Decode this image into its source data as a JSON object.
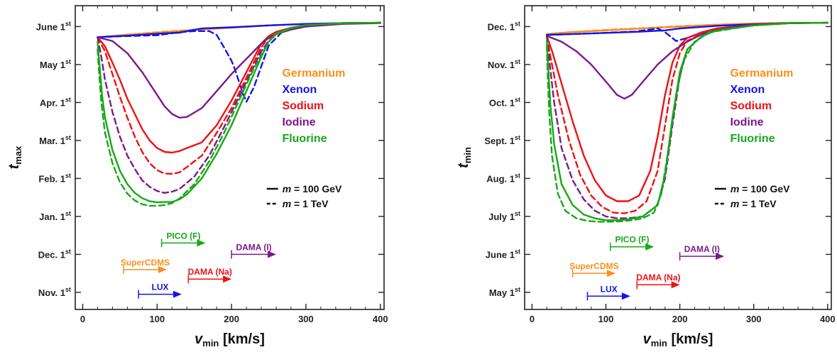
{
  "colors": {
    "Germanium": "#ff8c1a",
    "Xenon": "#1414e6",
    "Sodium": "#ee1111",
    "Iodine": "#7a1a8c",
    "Fluorine": "#17a817"
  },
  "legend_entries": [
    "Germanium",
    "Xenon",
    "Sodium",
    "Iodine",
    "Fluorine"
  ],
  "style_legend": [
    {
      "dash": "solid",
      "prefix": "m",
      "text": " = 100 GeV"
    },
    {
      "dash": "dashed",
      "prefix": "m",
      "text": " = 1 TeV"
    }
  ],
  "chart_data": [
    {
      "type": "line",
      "ylabel_main": "t",
      "ylabel_sub": "max",
      "xlabel_main": "v",
      "xlabel_sub": "min",
      "xlabel_unit": "[km/s]",
      "xlim": [
        -10,
        405
      ],
      "ylim": [
        -0.45,
        7.55
      ],
      "xticks": [
        0,
        100,
        200,
        300,
        400
      ],
      "yticks": [
        {
          "v": 0,
          "label": "Nov. 1",
          "sup": "st"
        },
        {
          "v": 1,
          "label": "Dec. 1",
          "sup": "st"
        },
        {
          "v": 2,
          "label": "Jan. 1",
          "sup": "st"
        },
        {
          "v": 3,
          "label": "Feb. 1",
          "sup": "st"
        },
        {
          "v": 4,
          "label": "Mar. 1",
          "sup": "st"
        },
        {
          "v": 5,
          "label": "Apr. 1",
          "sup": "st"
        },
        {
          "v": 6,
          "label": "May 1",
          "sup": "st"
        },
        {
          "v": 7,
          "label": "June 1",
          "sup": "st"
        }
      ],
      "series": [
        {
          "name": "Germanium",
          "style": "solid",
          "x": [
            20,
            50,
            100,
            150,
            200,
            250,
            300,
            350,
            400
          ],
          "y": [
            6.72,
            6.77,
            6.84,
            6.91,
            6.97,
            7.03,
            7.07,
            7.09,
            7.1
          ]
        },
        {
          "name": "Germanium",
          "style": "dashed",
          "x": [
            20,
            50,
            100,
            150,
            200,
            250,
            300,
            350,
            400
          ],
          "y": [
            6.72,
            6.77,
            6.85,
            6.92,
            6.98,
            7.03,
            7.07,
            7.09,
            7.1
          ]
        },
        {
          "name": "Xenon",
          "style": "solid",
          "x": [
            20,
            60,
            100,
            130,
            160,
            200,
            250,
            300,
            350,
            400
          ],
          "y": [
            6.72,
            6.76,
            6.81,
            6.84,
            6.95,
            6.98,
            7.03,
            7.07,
            7.09,
            7.1
          ]
        },
        {
          "name": "Xenon",
          "style": "dashed",
          "x": [
            20,
            60,
            100,
            130,
            150,
            170,
            180,
            190,
            200,
            205,
            210,
            215,
            220,
            230,
            240,
            250,
            270,
            300,
            350,
            400
          ],
          "y": [
            6.72,
            6.75,
            6.77,
            6.85,
            6.88,
            6.88,
            6.78,
            6.45,
            6.1,
            5.85,
            5.55,
            5.25,
            5.02,
            5.4,
            5.95,
            6.5,
            6.9,
            7.05,
            7.09,
            7.1
          ]
        },
        {
          "name": "Sodium",
          "style": "solid",
          "x": [
            20,
            30,
            40,
            50,
            60,
            70,
            80,
            90,
            100,
            110,
            120,
            130,
            140,
            160,
            180,
            200,
            220,
            240,
            250,
            260,
            280,
            300,
            350,
            400
          ],
          "y": [
            6.72,
            6.48,
            6.05,
            5.6,
            5.1,
            4.7,
            4.3,
            4.0,
            3.8,
            3.7,
            3.68,
            3.72,
            3.8,
            3.95,
            4.4,
            5.05,
            5.8,
            6.55,
            6.75,
            6.86,
            6.97,
            7.04,
            7.09,
            7.1
          ]
        },
        {
          "name": "Sodium",
          "style": "dashed",
          "x": [
            20,
            30,
            40,
            50,
            60,
            70,
            80,
            90,
            100,
            110,
            120,
            130,
            140,
            160,
            180,
            200,
            220,
            240,
            250,
            260,
            280,
            300,
            350,
            400
          ],
          "y": [
            6.72,
            6.35,
            5.75,
            5.15,
            4.6,
            4.1,
            3.7,
            3.4,
            3.22,
            3.13,
            3.12,
            3.16,
            3.3,
            3.6,
            4.2,
            4.85,
            5.65,
            6.45,
            6.72,
            6.84,
            6.96,
            7.04,
            7.09,
            7.1
          ]
        },
        {
          "name": "Iodine",
          "style": "solid",
          "x": [
            20,
            40,
            60,
            80,
            100,
            110,
            120,
            130,
            140,
            160,
            180,
            200,
            220,
            240,
            250,
            260,
            280,
            300,
            350,
            400
          ],
          "y": [
            6.72,
            6.62,
            6.3,
            5.8,
            5.2,
            4.9,
            4.7,
            4.6,
            4.62,
            4.85,
            5.3,
            5.75,
            6.15,
            6.55,
            6.7,
            6.8,
            6.92,
            7.0,
            7.07,
            7.09
          ]
        },
        {
          "name": "Iodine",
          "style": "dashed",
          "x": [
            20,
            25,
            30,
            40,
            50,
            60,
            70,
            80,
            90,
            100,
            110,
            120,
            130,
            150,
            170,
            190,
            210,
            230,
            240,
            250,
            260,
            280,
            300,
            350,
            400
          ],
          "y": [
            6.72,
            6.2,
            5.6,
            4.75,
            4.1,
            3.6,
            3.25,
            2.95,
            2.78,
            2.67,
            2.62,
            2.65,
            2.72,
            3.05,
            3.6,
            4.35,
            5.15,
            5.95,
            6.35,
            6.62,
            6.8,
            6.95,
            7.04,
            7.08,
            7.1
          ]
        },
        {
          "name": "Fluorine",
          "style": "solid",
          "x": [
            20,
            23,
            26,
            30,
            40,
            50,
            60,
            70,
            80,
            90,
            100,
            110,
            120,
            130,
            140,
            160,
            180,
            200,
            220,
            240,
            250,
            260,
            280,
            300,
            350,
            400
          ],
          "y": [
            6.6,
            5.9,
            5.2,
            4.6,
            3.75,
            3.2,
            2.85,
            2.62,
            2.48,
            2.4,
            2.37,
            2.38,
            2.38,
            2.45,
            2.58,
            3.0,
            3.65,
            4.4,
            5.3,
            6.2,
            6.6,
            6.8,
            6.96,
            7.04,
            7.09,
            7.1
          ]
        },
        {
          "name": "Fluorine",
          "style": "dashed",
          "x": [
            20,
            22,
            25,
            30,
            40,
            50,
            60,
            70,
            80,
            90,
            100,
            110,
            120,
            130,
            150,
            170,
            190,
            210,
            230,
            250,
            260,
            280,
            300,
            350,
            400
          ],
          "y": [
            6.4,
            5.8,
            5.0,
            4.2,
            3.4,
            2.9,
            2.6,
            2.42,
            2.32,
            2.28,
            2.28,
            2.3,
            2.35,
            2.47,
            2.85,
            3.45,
            4.2,
            5.05,
            5.9,
            6.6,
            6.82,
            6.97,
            7.04,
            7.09,
            7.1
          ]
        }
      ],
      "experiments": [
        {
          "label": "PICO (F)",
          "color_key": "Fluorine",
          "start": 106,
          "end": 165,
          "y": 1.3
        },
        {
          "label": "DAMA (I)",
          "color_key": "Iodine",
          "start": 200,
          "end": 260,
          "y": 1.0
        },
        {
          "label": "SuperCDMS",
          "color_key": "Germanium",
          "start": 55,
          "end": 113,
          "y": 0.6
        },
        {
          "label": "DAMA (Na)",
          "color_key": "Sodium",
          "start": 142,
          "end": 200,
          "y": 0.35
        },
        {
          "label": "LUX",
          "color_key": "Xenon",
          "start": 75,
          "end": 133,
          "y": -0.05
        }
      ]
    },
    {
      "type": "line",
      "ylabel_main": "t",
      "ylabel_sub": "min",
      "xlabel_main": "v",
      "xlabel_sub": "min",
      "xlabel_unit": "[km/s]",
      "xlim": [
        -10,
        405
      ],
      "ylim": [
        -0.45,
        7.55
      ],
      "xticks": [
        0,
        100,
        200,
        300,
        400
      ],
      "yticks": [
        {
          "v": 0,
          "label": "May 1",
          "sup": "st"
        },
        {
          "v": 1,
          "label": "June 1",
          "sup": "st"
        },
        {
          "v": 2,
          "label": "July 1",
          "sup": "st"
        },
        {
          "v": 3,
          "label": "Aug. 1",
          "sup": "st"
        },
        {
          "v": 4,
          "label": "Sept. 1",
          "sup": "st"
        },
        {
          "v": 5,
          "label": "Oct. 1",
          "sup": "st"
        },
        {
          "v": 6,
          "label": "Nov. 1",
          "sup": "st"
        },
        {
          "v": 7,
          "label": "Dec. 1",
          "sup": "st"
        }
      ],
      "series": [
        {
          "name": "Germanium",
          "style": "solid",
          "x": [
            20,
            50,
            100,
            150,
            200,
            250,
            300,
            350,
            400
          ],
          "y": [
            6.8,
            6.85,
            6.9,
            6.95,
            7.0,
            7.05,
            7.08,
            7.1,
            7.1
          ]
        },
        {
          "name": "Germanium",
          "style": "dashed",
          "x": [
            20,
            50,
            100,
            150,
            200,
            250,
            300,
            350,
            400
          ],
          "y": [
            6.8,
            6.85,
            6.91,
            6.96,
            7.01,
            7.05,
            7.08,
            7.1,
            7.1
          ]
        },
        {
          "name": "Xenon",
          "style": "solid",
          "x": [
            20,
            80,
            140,
            180,
            200,
            250,
            300,
            350,
            400
          ],
          "y": [
            6.78,
            6.82,
            6.86,
            6.9,
            6.95,
            7.02,
            7.06,
            7.09,
            7.1
          ]
        },
        {
          "name": "Xenon",
          "style": "dashed",
          "x": [
            20,
            80,
            140,
            170,
            180,
            195,
            210,
            230,
            250,
            300,
            350,
            400
          ],
          "y": [
            6.78,
            6.82,
            6.87,
            6.95,
            6.85,
            6.62,
            6.7,
            6.85,
            6.95,
            7.05,
            7.09,
            7.1
          ]
        },
        {
          "name": "Sodium",
          "style": "solid",
          "x": [
            20,
            28,
            40,
            55,
            70,
            85,
            100,
            115,
            130,
            145,
            160,
            170,
            180,
            190,
            200,
            210,
            230,
            250,
            300,
            350,
            400
          ],
          "y": [
            6.75,
            6.3,
            5.5,
            4.5,
            3.6,
            2.95,
            2.55,
            2.4,
            2.4,
            2.55,
            3.2,
            4.1,
            5.2,
            6.05,
            6.5,
            6.7,
            6.85,
            6.95,
            7.05,
            7.09,
            7.1
          ]
        },
        {
          "name": "Sodium",
          "style": "dashed",
          "x": [
            20,
            25,
            35,
            50,
            65,
            80,
            95,
            110,
            125,
            140,
            155,
            170,
            180,
            190,
            200,
            210,
            230,
            250,
            300,
            350,
            400
          ],
          "y": [
            6.75,
            6.2,
            5.2,
            4.0,
            3.1,
            2.55,
            2.25,
            2.1,
            2.08,
            2.15,
            2.4,
            3.2,
            4.4,
            5.6,
            6.3,
            6.62,
            6.82,
            6.93,
            7.04,
            7.09,
            7.1
          ]
        },
        {
          "name": "Iodine",
          "style": "solid",
          "x": [
            20,
            40,
            60,
            80,
            100,
            115,
            125,
            135,
            150,
            170,
            190,
            210,
            230,
            260,
            300,
            350,
            400
          ],
          "y": [
            6.75,
            6.6,
            6.35,
            6.0,
            5.55,
            5.2,
            5.1,
            5.2,
            5.55,
            6.0,
            6.35,
            6.6,
            6.8,
            6.95,
            7.05,
            7.09,
            7.1
          ]
        },
        {
          "name": "Iodine",
          "style": "dashed",
          "x": [
            20,
            24,
            30,
            40,
            55,
            70,
            85,
            100,
            115,
            130,
            150,
            170,
            180,
            190,
            200,
            210,
            230,
            250,
            300,
            350,
            400
          ],
          "y": [
            6.75,
            6.0,
            5.0,
            3.8,
            2.95,
            2.45,
            2.15,
            2.0,
            1.95,
            1.95,
            2.0,
            2.3,
            3.0,
            4.4,
            5.7,
            6.4,
            6.75,
            6.9,
            7.03,
            7.09,
            7.1
          ]
        },
        {
          "name": "Fluorine",
          "style": "solid",
          "x": [
            20,
            22,
            25,
            30,
            40,
            55,
            70,
            85,
            100,
            115,
            130,
            150,
            170,
            180,
            190,
            200,
            210,
            230,
            250,
            300,
            350,
            400
          ],
          "y": [
            6.65,
            5.9,
            4.9,
            3.9,
            2.85,
            2.3,
            2.05,
            1.95,
            1.9,
            1.9,
            1.92,
            2.0,
            2.3,
            3.1,
            4.6,
            5.8,
            6.4,
            6.75,
            6.9,
            7.03,
            7.09,
            7.1
          ]
        },
        {
          "name": "Fluorine",
          "style": "dashed",
          "x": [
            20,
            21,
            23,
            27,
            35,
            45,
            60,
            75,
            90,
            105,
            120,
            135,
            150,
            165,
            175,
            185,
            195,
            205,
            220,
            240,
            300,
            350,
            400
          ],
          "y": [
            6.5,
            5.8,
            4.8,
            3.6,
            2.6,
            2.15,
            1.95,
            1.88,
            1.86,
            1.86,
            1.87,
            1.9,
            1.95,
            2.1,
            2.6,
            3.8,
            5.2,
            6.1,
            6.6,
            6.85,
            7.03,
            7.09,
            7.1
          ]
        }
      ],
      "experiments": [
        {
          "label": "PICO (F)",
          "color_key": "Fluorine",
          "start": 106,
          "end": 165,
          "y": 1.2
        },
        {
          "label": "DAMA (I)",
          "color_key": "Iodine",
          "start": 200,
          "end": 260,
          "y": 0.95
        },
        {
          "label": "SuperCDMS",
          "color_key": "Germanium",
          "start": 55,
          "end": 113,
          "y": 0.5
        },
        {
          "label": "DAMA (Na)",
          "color_key": "Sodium",
          "start": 142,
          "end": 200,
          "y": 0.2
        },
        {
          "label": "LUX",
          "color_key": "Xenon",
          "start": 75,
          "end": 133,
          "y": -0.1
        }
      ]
    }
  ]
}
